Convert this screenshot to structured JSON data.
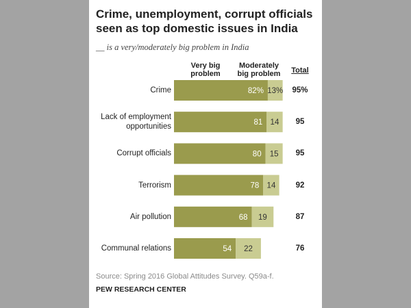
{
  "chart_data": {
    "type": "stacked-bar",
    "title": "Crime, unemployment, corrupt officials seen as top domestic issues in India",
    "subtitle": "__ is a very/moderately big problem in India",
    "categories": [
      "Crime",
      "Lack of employment opportunities",
      "Corrupt officials",
      "Terrorism",
      "Air pollution",
      "Communal relations"
    ],
    "series": [
      {
        "name": "Very big problem",
        "color": "#9a9b4d",
        "values": [
          82,
          81,
          80,
          78,
          68,
          54
        ],
        "value_labels": [
          "82%",
          "81",
          "80",
          "78",
          "68",
          "54"
        ]
      },
      {
        "name": "Moderately big problem",
        "color": "#c9cc92",
        "values": [
          13,
          14,
          15,
          14,
          19,
          22
        ],
        "value_labels": [
          "13%",
          "14",
          "15",
          "14",
          "19",
          "22"
        ]
      }
    ],
    "total": {
      "name": "Total",
      "values": [
        95,
        95,
        95,
        92,
        87,
        76
      ],
      "value_labels": [
        "95%",
        "95",
        "95",
        "92",
        "87",
        "76"
      ]
    },
    "xlim": [
      0,
      100
    ],
    "source": "Source: Spring 2016 Global Attitudes Survey. Q59a-f.",
    "credit": "PEW RESEARCH CENTER"
  }
}
